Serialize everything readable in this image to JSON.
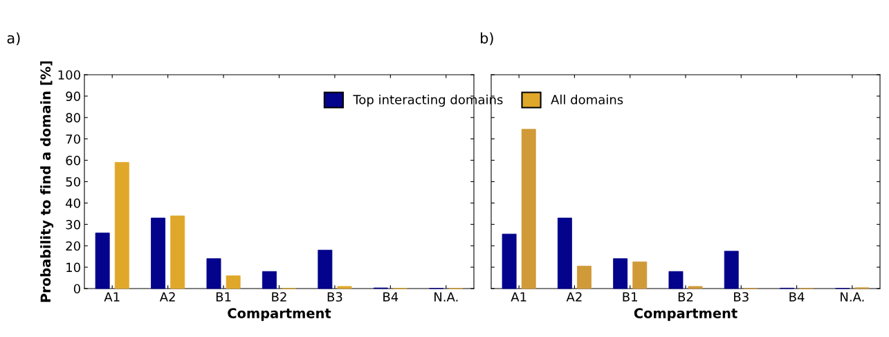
{
  "chart_data": [
    {
      "type": "bar",
      "title": "a)",
      "xlabel": "Compartment",
      "ylabel": "Probability to find a domain [%]",
      "categories": [
        "A1",
        "A2",
        "B1",
        "B2",
        "B3",
        "B4",
        "N.A."
      ],
      "ylim": [
        0,
        100
      ],
      "yticks": [
        0,
        10,
        20,
        30,
        40,
        50,
        60,
        70,
        80,
        90,
        100
      ],
      "legend": "top",
      "grid": false,
      "series": [
        {
          "name": "Top interacting domains",
          "color": "#03038c",
          "values": [
            26,
            33,
            14,
            8,
            18,
            0.3,
            0.1
          ]
        },
        {
          "name": "All domains",
          "color": "#e0a82a",
          "values": [
            59,
            34,
            6,
            0,
            1,
            0,
            0
          ]
        }
      ]
    },
    {
      "type": "bar",
      "title": "b)",
      "xlabel": "Compartment",
      "categories": [
        "A1",
        "A2",
        "B1",
        "B2",
        "B3",
        "B4",
        "N.A."
      ],
      "ylim": [
        0,
        100
      ],
      "yticks": [
        0,
        10,
        20,
        30,
        40,
        50,
        60,
        70,
        80,
        90,
        100
      ],
      "tick_labels": "x",
      "grid": false,
      "series": [
        {
          "color": "#03038c",
          "values": [
            25.5,
            33,
            14,
            8,
            17.5,
            0.2,
            0.1
          ]
        },
        {
          "color": "#d09a38",
          "values": [
            74.5,
            10.5,
            12.5,
            1,
            0,
            0,
            0.4
          ]
        }
      ]
    }
  ]
}
